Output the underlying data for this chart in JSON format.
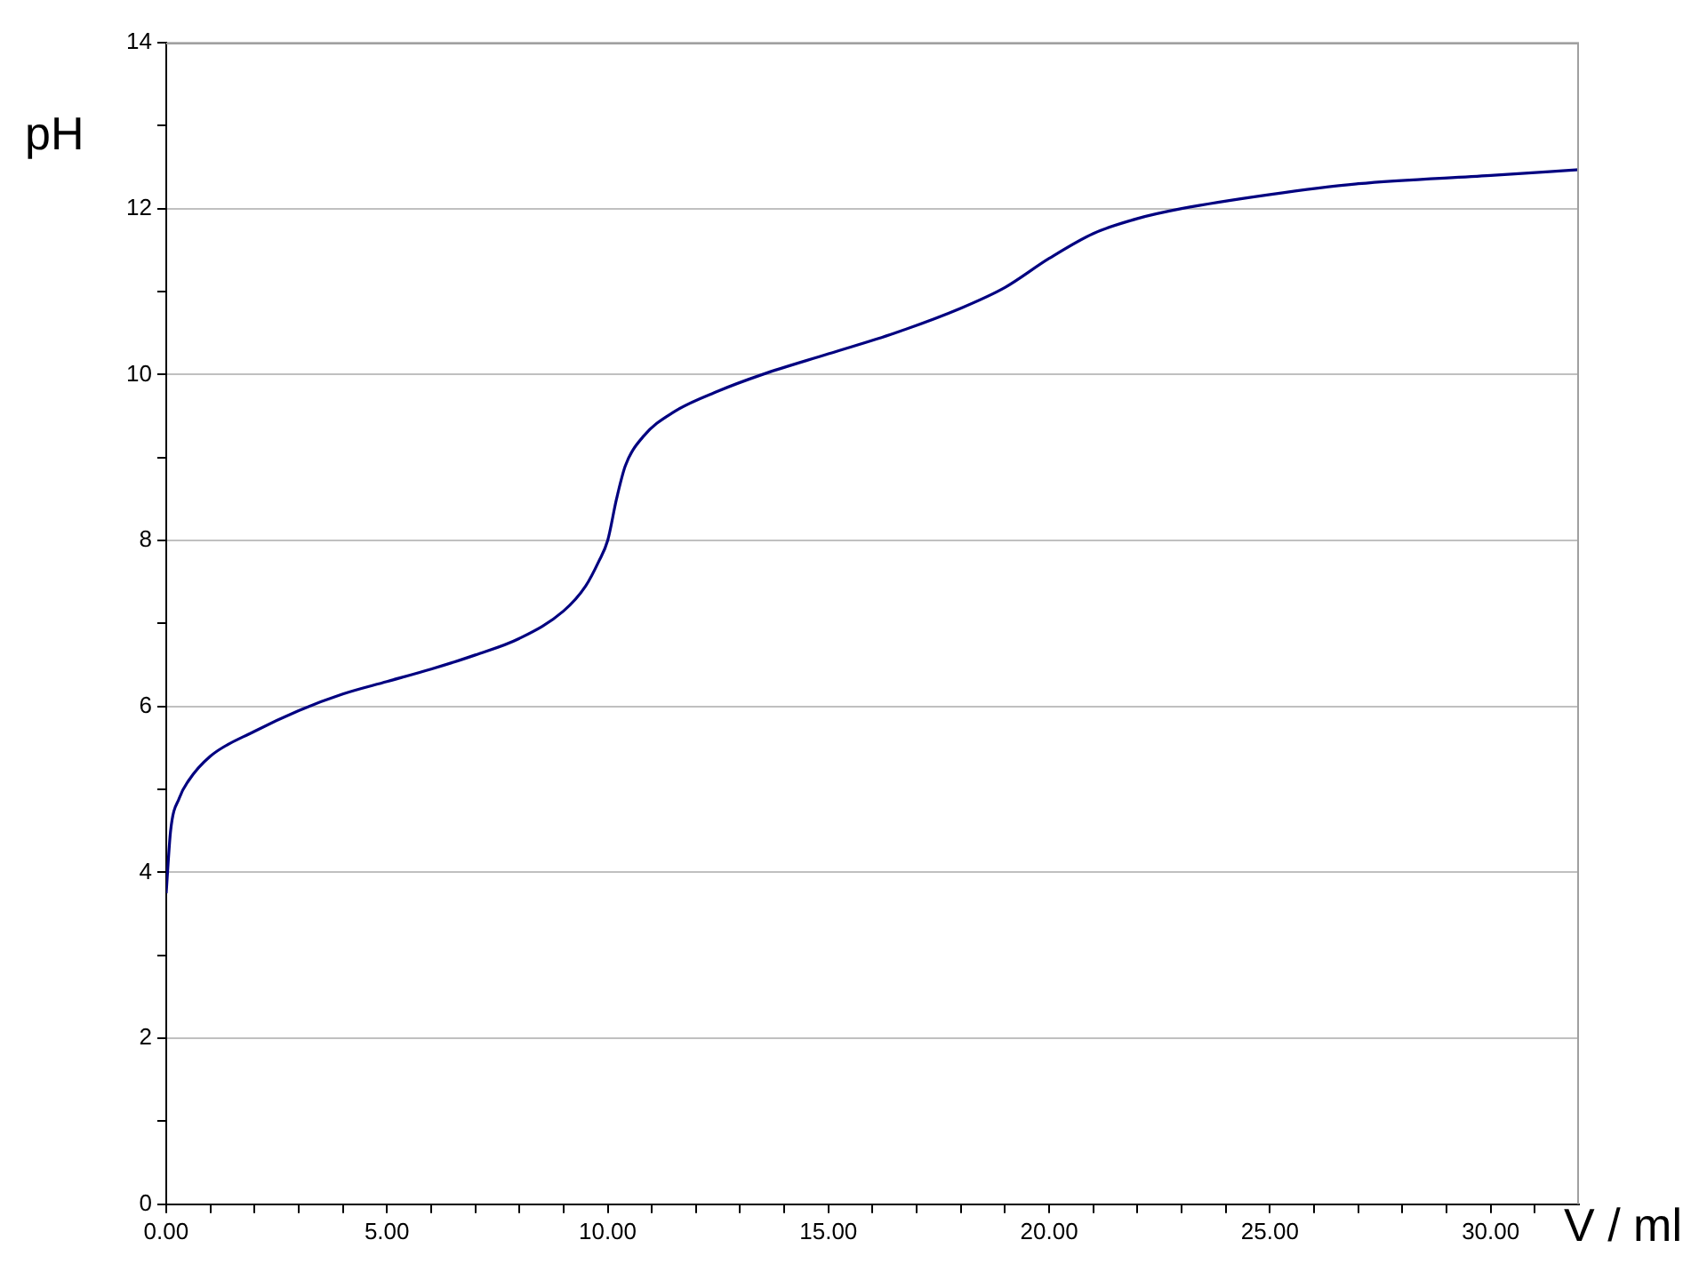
{
  "chart_data": {
    "type": "line",
    "xlabel": "V / ml",
    "ylabel": "pH",
    "x": [
      0,
      0.1,
      0.3,
      0.5,
      1,
      2,
      3,
      4,
      5,
      6,
      7,
      8,
      9,
      9.5,
      9.8,
      10,
      10.2,
      10.4,
      10.8,
      11.5,
      12.5,
      13.5,
      15,
      16.5,
      18,
      19,
      20,
      21,
      22,
      23,
      25,
      27,
      30,
      32
    ],
    "series": [
      {
        "color": "#000080",
        "values": [
          3.75,
          4.5,
          4.9,
          5.1,
          5.4,
          5.7,
          5.95,
          6.15,
          6.3,
          6.45,
          6.62,
          6.82,
          7.15,
          7.45,
          7.75,
          8.0,
          8.5,
          8.9,
          9.25,
          9.55,
          9.8,
          10.0,
          10.25,
          10.5,
          10.8,
          11.05,
          11.4,
          11.7,
          11.88,
          12.0,
          12.17,
          12.3,
          12.4,
          12.47
        ]
      }
    ],
    "xlim": [
      0,
      32
    ],
    "xticks": [
      {
        "value": 0,
        "label": "0.00"
      },
      {
        "value": 1,
        "label": null
      },
      {
        "value": 2,
        "label": null
      },
      {
        "value": 3,
        "label": null
      },
      {
        "value": 4,
        "label": null
      },
      {
        "value": 5,
        "label": "5.00"
      },
      {
        "value": 6,
        "label": null
      },
      {
        "value": 7,
        "label": null
      },
      {
        "value": 8,
        "label": null
      },
      {
        "value": 9,
        "label": null
      },
      {
        "value": 10,
        "label": "10.00"
      },
      {
        "value": 11,
        "label": null
      },
      {
        "value": 12,
        "label": null
      },
      {
        "value": 13,
        "label": null
      },
      {
        "value": 14,
        "label": null
      },
      {
        "value": 15,
        "label": "15.00"
      },
      {
        "value": 16,
        "label": null
      },
      {
        "value": 17,
        "label": null
      },
      {
        "value": 18,
        "label": null
      },
      {
        "value": 19,
        "label": null
      },
      {
        "value": 20,
        "label": "20.00"
      },
      {
        "value": 21,
        "label": null
      },
      {
        "value": 22,
        "label": null
      },
      {
        "value": 23,
        "label": null
      },
      {
        "value": 24,
        "label": null
      },
      {
        "value": 25,
        "label": "25.00"
      },
      {
        "value": 26,
        "label": null
      },
      {
        "value": 27,
        "label": null
      },
      {
        "value": 28,
        "label": null
      },
      {
        "value": 29,
        "label": null
      },
      {
        "value": 30,
        "label": "30.00"
      },
      {
        "value": 31,
        "label": null
      }
    ],
    "ylim": [
      0,
      14
    ],
    "yticks": [
      0,
      {
        "value": 1,
        "label": null
      },
      2,
      {
        "value": 3,
        "label": null
      },
      4,
      {
        "value": 5,
        "label": null
      },
      6,
      {
        "value": 7,
        "label": null
      },
      8,
      {
        "value": 9,
        "label": null
      },
      10,
      {
        "value": 11,
        "label": null
      },
      12,
      {
        "value": 13,
        "label": null
      },
      14
    ],
    "grid": "y",
    "legend": false,
    "marker": "none",
    "line_style": "solid"
  }
}
